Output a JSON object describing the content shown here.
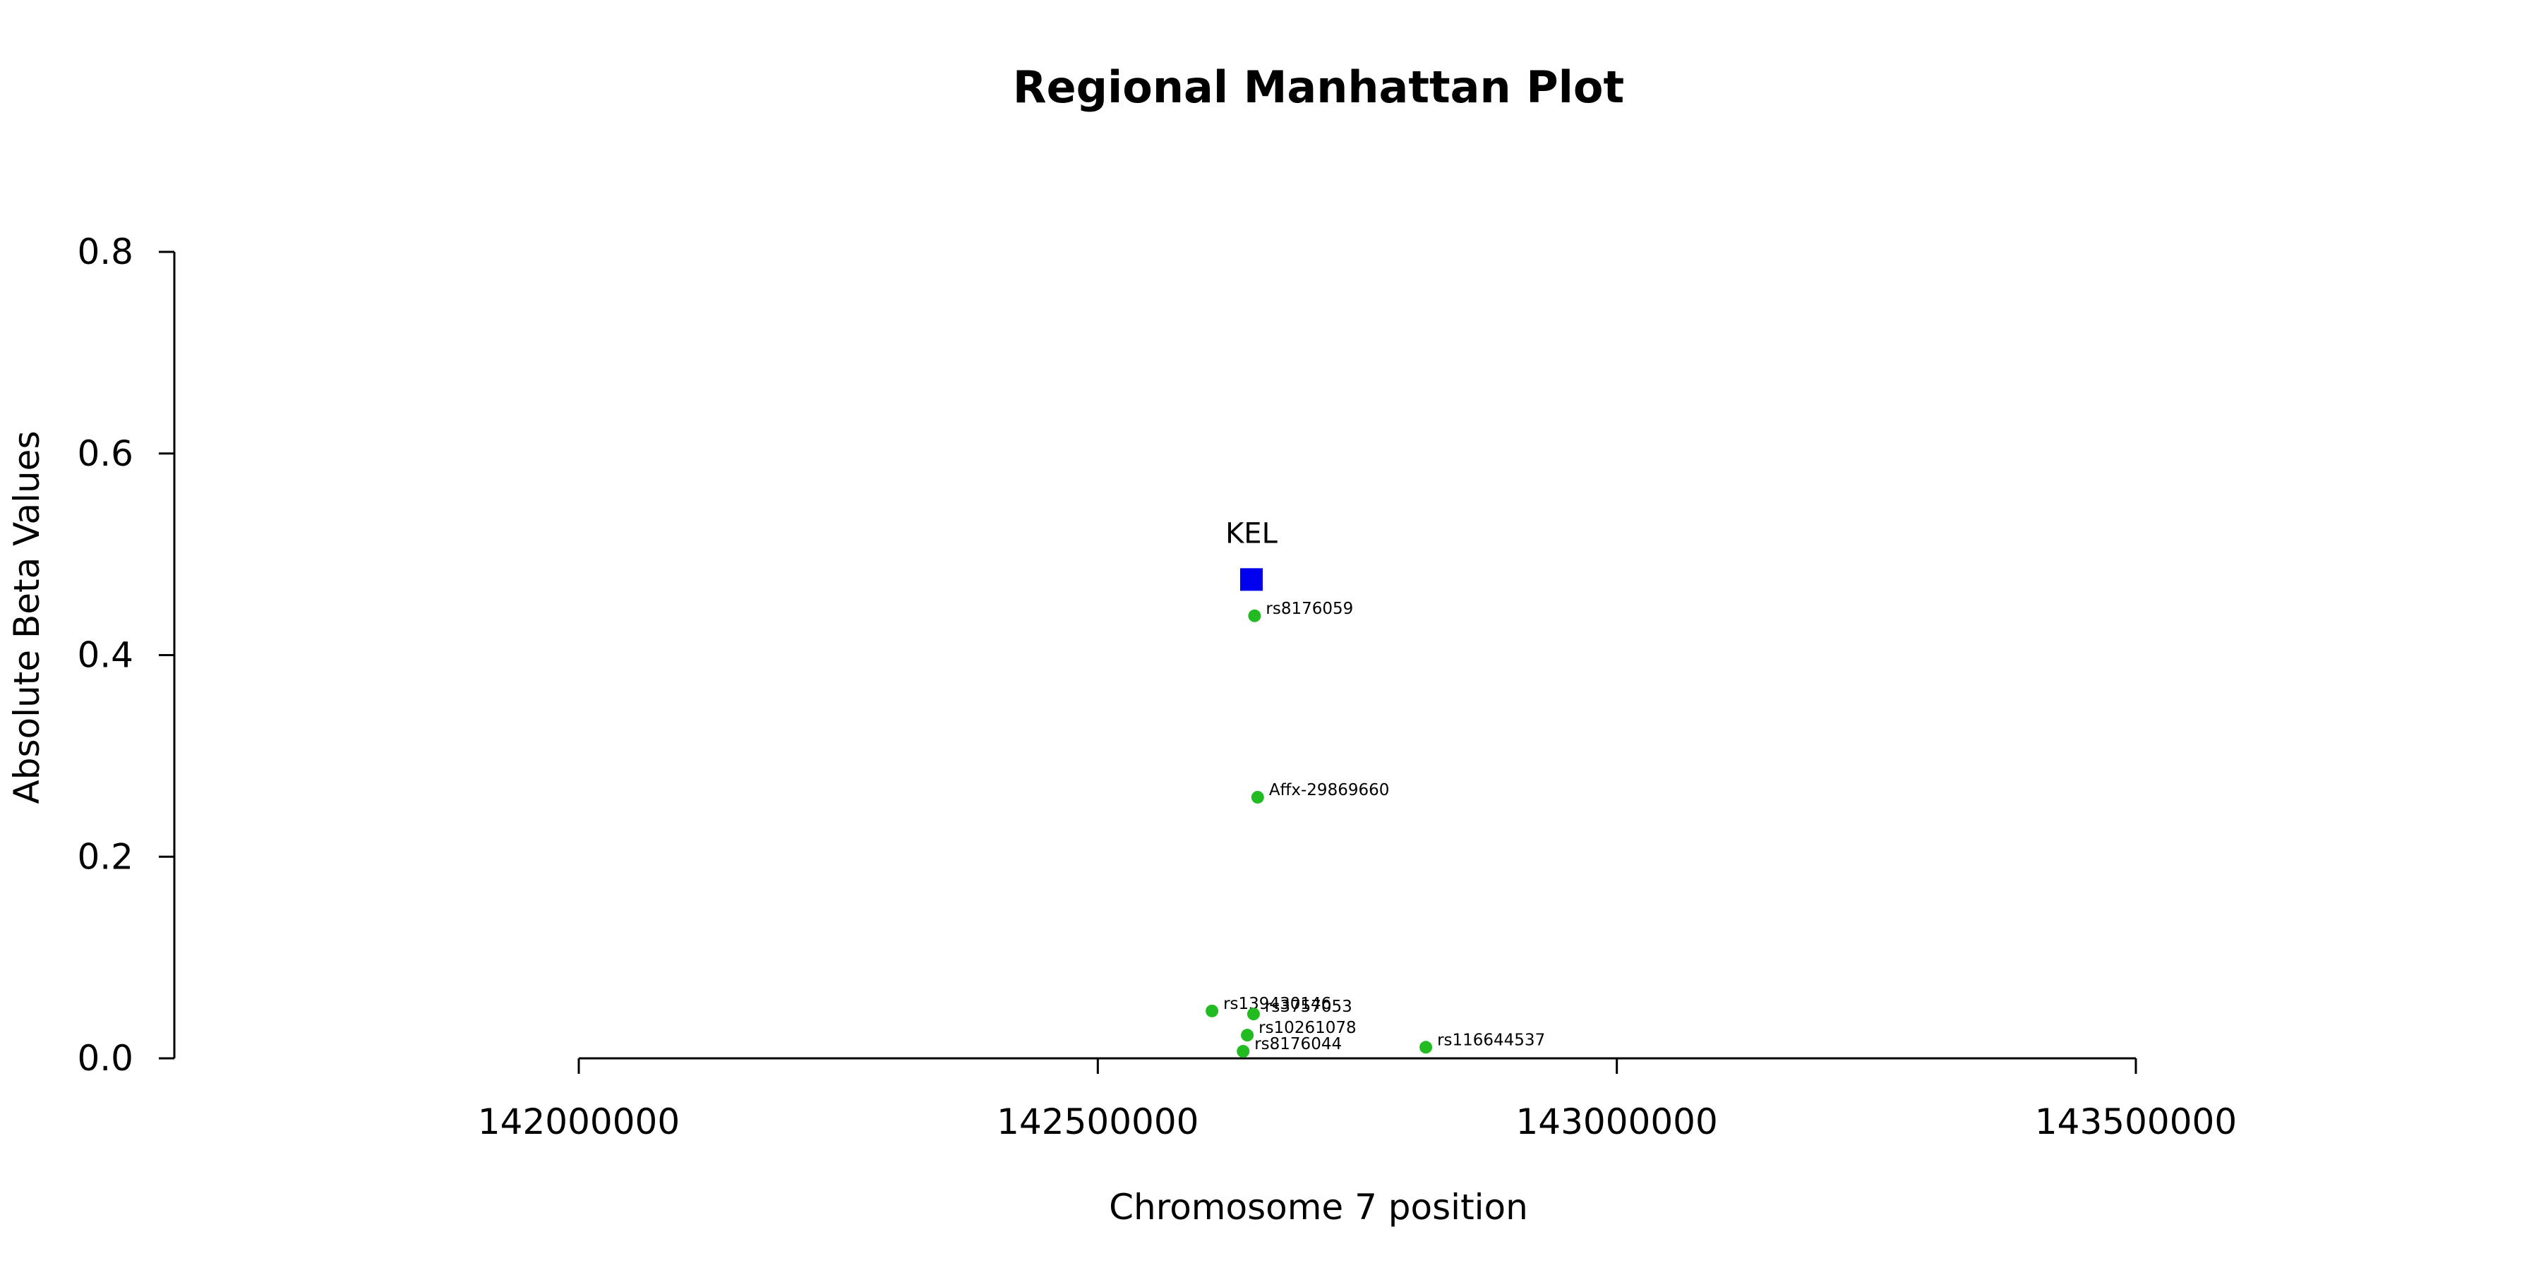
{
  "chart_data": {
    "type": "scatter",
    "title": "Regional Manhattan Plot",
    "xlabel": "Chromosome 7 position",
    "ylabel": "Absolute Beta Values",
    "xlim": [
      142000000,
      143500000
    ],
    "ylim": [
      0,
      0.8
    ],
    "x_ticks": [
      142000000,
      142500000,
      143000000,
      143500000
    ],
    "y_ticks": [
      0.0,
      0.2,
      0.4,
      0.6,
      0.8
    ],
    "x_tick_labels": [
      "142000000",
      "142500000",
      "143000000",
      "143500000"
    ],
    "y_tick_labels": [
      "0.0",
      "0.2",
      "0.4",
      "0.6",
      "0.8"
    ],
    "grid": false,
    "gene": {
      "name": "KEL",
      "x": 142648000,
      "y": 0.475,
      "color": "#0000ee",
      "marker": "square"
    },
    "snp_color": "#22bb22",
    "points": [
      {
        "label": "rs8176059",
        "x": 142651000,
        "y": 0.439
      },
      {
        "label": "Affx-29869660",
        "x": 142654000,
        "y": 0.259
      },
      {
        "label": "rs139430146",
        "x": 142610000,
        "y": 0.047
      },
      {
        "label": "rs3757053",
        "x": 142650000,
        "y": 0.044
      },
      {
        "label": "rs10261078",
        "x": 142644000,
        "y": 0.023
      },
      {
        "label": "rs8176044",
        "x": 142640000,
        "y": 0.007
      },
      {
        "label": "rs116644537",
        "x": 142816000,
        "y": 0.011
      }
    ]
  }
}
